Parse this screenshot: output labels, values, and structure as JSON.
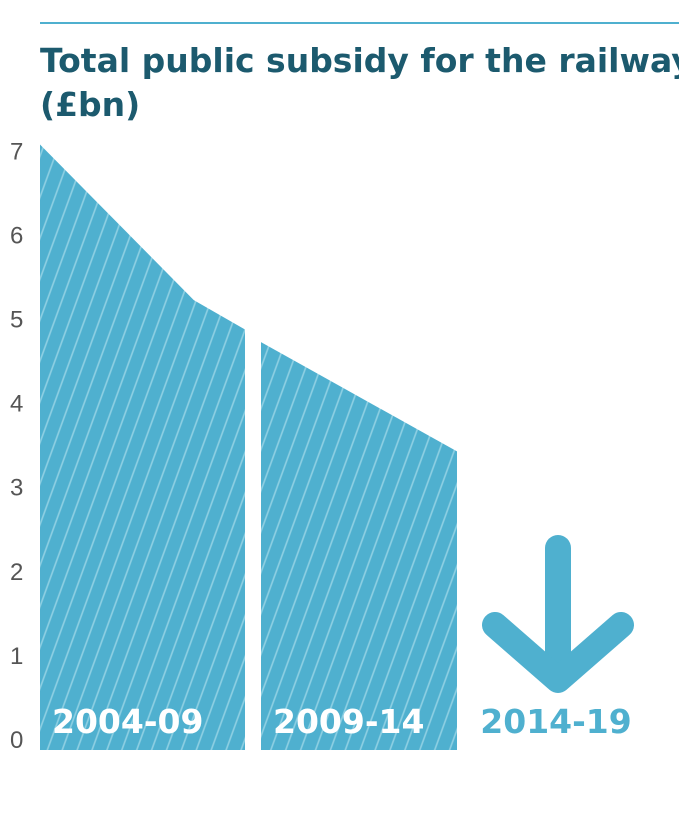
{
  "colors": {
    "area": "#4fb0cf",
    "stripe": "#8fd0e3",
    "title": "#1c5a6e",
    "rule": "#4fb0cf",
    "tick": "#555555",
    "label_on_area": "#ffffff",
    "label_projection": "#4fb0cf",
    "arrow": "#4fb0cf"
  },
  "chart_data": {
    "type": "area",
    "title": "Total public subsidy for the railway",
    "title_line1": "Total public subsidy for the railway",
    "title_line2": "(£bn)",
    "ylabel": "£bn",
    "ylim": [
      0,
      7.3
    ],
    "yticks": [
      "0",
      "1",
      "2",
      "3",
      "4",
      "5",
      "6",
      "7"
    ],
    "periods": [
      {
        "label": "2004-09",
        "x": [
          0,
          0.75,
          1
        ],
        "values": [
          7.2,
          5.35,
          5.0
        ]
      },
      {
        "label": "2009-14",
        "x": [
          0,
          1
        ],
        "values": [
          4.85,
          3.55
        ]
      },
      {
        "label": "2014-19",
        "trend": "down",
        "values": []
      }
    ]
  }
}
